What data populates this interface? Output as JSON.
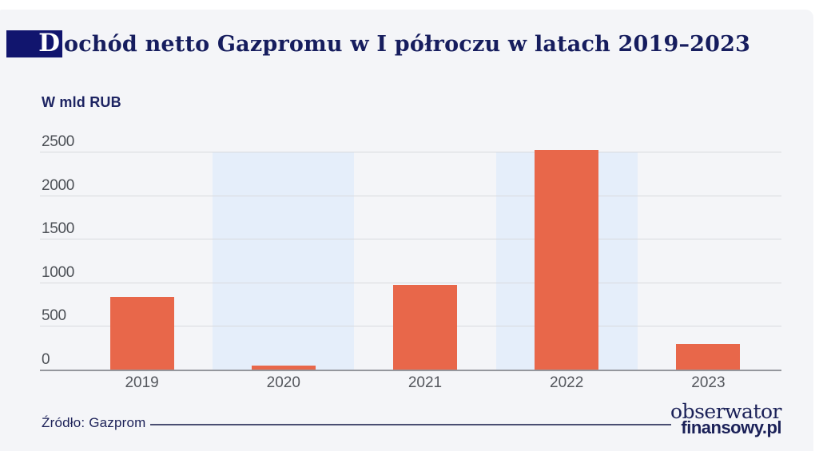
{
  "header": {
    "title_drop_cap": "D",
    "title_rest": "ochód netto Gazpromu w I półroczu w latach 2019–2023"
  },
  "chart_data": {
    "type": "bar",
    "title": "Dochód netto Gazpromu w I półroczu w latach 2019–2023",
    "unit_label": "W mld RUB",
    "categories": [
      "2019",
      "2020",
      "2021",
      "2022",
      "2023"
    ],
    "values": [
      836,
      45,
      968,
      2514,
      296
    ],
    "y_ticks": [
      0,
      500,
      1000,
      1500,
      2000,
      2500
    ],
    "ylim": [
      0,
      2500
    ],
    "grid": true,
    "legend": false,
    "highlighted_categories": [
      "2020",
      "2022"
    ],
    "bar_color": "#e8674a",
    "highlight_band_color": "#e5eefa",
    "source": "Źródło: Gazprom"
  },
  "footer": {
    "source_label": "Źródło: Gazprom",
    "logo_line1": "obserwator",
    "logo_line2": "finansowy.pl"
  },
  "colors": {
    "accent_navy": "#11156e",
    "title_navy": "#161d5e",
    "bar_orange": "#e8674a",
    "band_blue": "#e5eefa",
    "background": "#f4f5f8",
    "gridline": "#d8dade",
    "axis": "#94979d"
  }
}
